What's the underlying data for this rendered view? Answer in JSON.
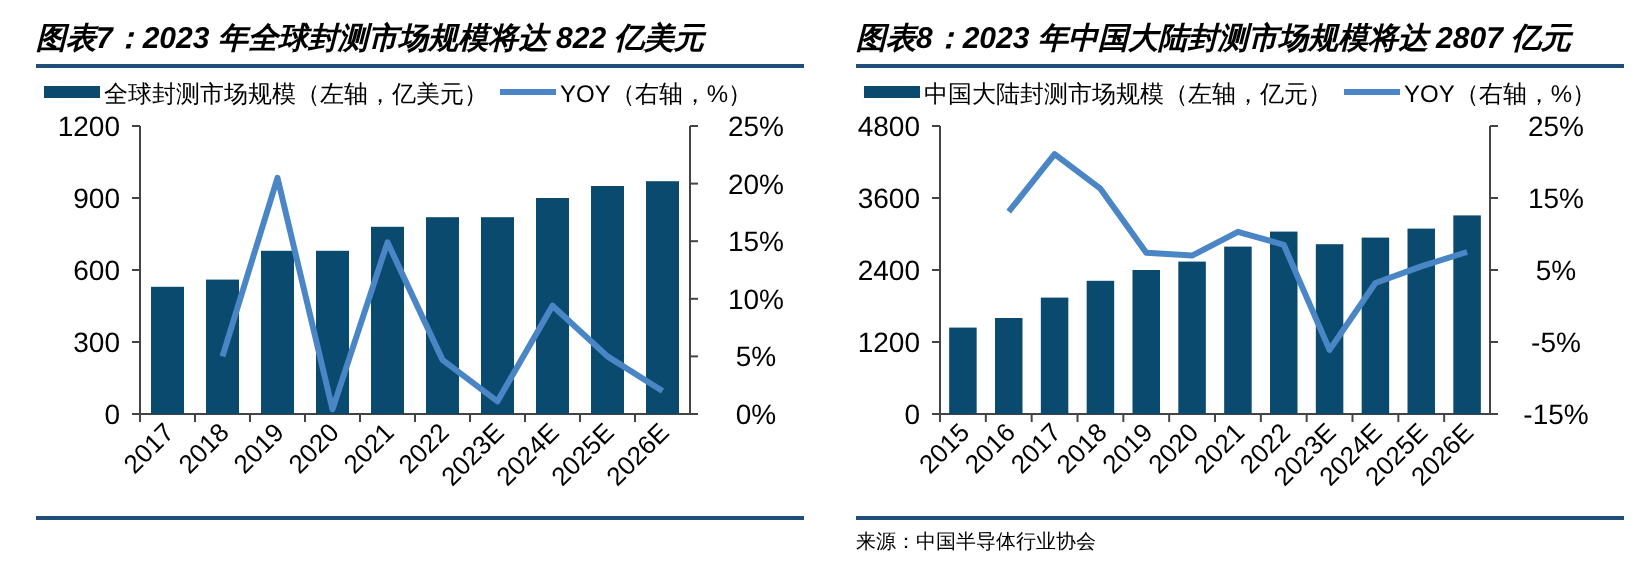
{
  "chart_data": [
    {
      "type": "bar",
      "title": "图表7：2023 年全球封测市场规模将达 822 亿美元",
      "categories": [
        "2017",
        "2018",
        "2019",
        "2020",
        "2021",
        "2022",
        "2023E",
        "2024E",
        "2025E",
        "2026E"
      ],
      "series": [
        {
          "name": "全球封测市场规模（左轴，亿美元）",
          "color": "#0b4a6f",
          "values": [
            530,
            560,
            680,
            680,
            780,
            820,
            820,
            900,
            950,
            970
          ]
        },
        {
          "name": "YOY（右轴，%）",
          "type": "line",
          "axis": "y2",
          "color": "#4a86c5",
          "values": [
            null,
            5.0,
            20.5,
            0.4,
            14.9,
            4.7,
            1.1,
            9.4,
            5.0,
            2.0
          ]
        }
      ],
      "ylim": [
        0,
        1200
      ],
      "yticks": [
        0,
        300,
        600,
        900,
        1200
      ],
      "y2lim": [
        0,
        25
      ],
      "y2ticks": [
        {
          "value": 0,
          "label": "0%"
        },
        {
          "value": 5,
          "label": "5%"
        },
        {
          "value": 10,
          "label": "10%"
        },
        {
          "value": 15,
          "label": "15%"
        },
        {
          "value": 20,
          "label": "20%"
        },
        {
          "value": 25,
          "label": "25%"
        }
      ],
      "legend": "top",
      "marker": "none",
      "line_style": "solid"
    },
    {
      "type": "bar",
      "title": "图表8：2023 年中国大陆封测市场规模将达 2807 亿元",
      "categories": [
        "2015",
        "2016",
        "2017",
        "2018",
        "2019",
        "2020",
        "2021",
        "2022",
        "2023E",
        "2024E",
        "2025E",
        "2026E"
      ],
      "series": [
        {
          "name": "中国大陆封测市场规模（左轴，亿元）",
          "color": "#0b4a6f",
          "values": [
            1440,
            1600,
            1940,
            2220,
            2400,
            2540,
            2790,
            3040,
            2830,
            2940,
            3090,
            3310
          ]
        },
        {
          "name": "YOY（右轴，%）",
          "type": "line",
          "axis": "y2",
          "color": "#4a86c5",
          "values": [
            null,
            13.1,
            21.1,
            16.3,
            7.4,
            7.0,
            10.3,
            8.5,
            -6.1,
            3.2,
            5.5,
            7.5
          ]
        }
      ],
      "ylim": [
        0,
        4800
      ],
      "yticks": [
        0,
        1200,
        2400,
        3600,
        4800
      ],
      "y2lim": [
        -15,
        25
      ],
      "y2ticks": [
        {
          "value": -15,
          "label": "-15%"
        },
        {
          "value": -5,
          "label": "-5%"
        },
        {
          "value": 5,
          "label": "5%"
        },
        {
          "value": 15,
          "label": "15%"
        },
        {
          "value": 25,
          "label": "25%"
        }
      ],
      "legend": "top",
      "marker": "none",
      "line_style": "solid",
      "annotations": [
        "来源：中国半导体行业协会"
      ]
    }
  ]
}
